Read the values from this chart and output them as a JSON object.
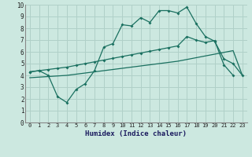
{
  "xlabel": "Humidex (Indice chaleur)",
  "xlim": [
    -0.5,
    23.5
  ],
  "ylim": [
    0,
    10
  ],
  "xticks": [
    0,
    1,
    2,
    3,
    4,
    5,
    6,
    7,
    8,
    9,
    10,
    11,
    12,
    13,
    14,
    15,
    16,
    17,
    18,
    19,
    20,
    21,
    22,
    23
  ],
  "yticks": [
    0,
    1,
    2,
    3,
    4,
    5,
    6,
    7,
    8,
    9,
    10
  ],
  "bg_color": "#cce8e0",
  "grid_color": "#b0d0c8",
  "line_color": "#1a7060",
  "line1_x": [
    0,
    1,
    2,
    3,
    4,
    5,
    6,
    7,
    8,
    9,
    10,
    11,
    12,
    13,
    14,
    15,
    16,
    17,
    18,
    19,
    20,
    21,
    22,
    23
  ],
  "line1_y": [
    4.3,
    4.4,
    4.0,
    2.2,
    1.7,
    2.8,
    3.3,
    4.4,
    6.4,
    6.7,
    8.3,
    8.2,
    8.9,
    8.5,
    9.5,
    9.5,
    9.3,
    9.8,
    8.4,
    7.3,
    6.9,
    5.4,
    5.0,
    4.0
  ],
  "line2_x": [
    0,
    1,
    2,
    3,
    4,
    5,
    6,
    7,
    8,
    9,
    10,
    11,
    12,
    13,
    14,
    15,
    16,
    17,
    18,
    19,
    20,
    21,
    22
  ],
  "line2_y": [
    4.3,
    4.4,
    4.5,
    4.6,
    4.7,
    4.85,
    5.0,
    5.15,
    5.3,
    5.45,
    5.6,
    5.75,
    5.9,
    6.05,
    6.2,
    6.35,
    6.5,
    7.3,
    7.0,
    6.8,
    6.95,
    4.9,
    4.0
  ],
  "line3_x": [
    0,
    1,
    2,
    3,
    4,
    5,
    6,
    7,
    8,
    9,
    10,
    11,
    12,
    13,
    14,
    15,
    16,
    17,
    18,
    19,
    20,
    21,
    22,
    23
  ],
  "line3_y": [
    3.8,
    3.85,
    3.9,
    3.95,
    4.0,
    4.1,
    4.2,
    4.3,
    4.4,
    4.5,
    4.6,
    4.7,
    4.8,
    4.9,
    5.0,
    5.1,
    5.2,
    5.35,
    5.5,
    5.65,
    5.8,
    5.95,
    6.1,
    4.0
  ]
}
